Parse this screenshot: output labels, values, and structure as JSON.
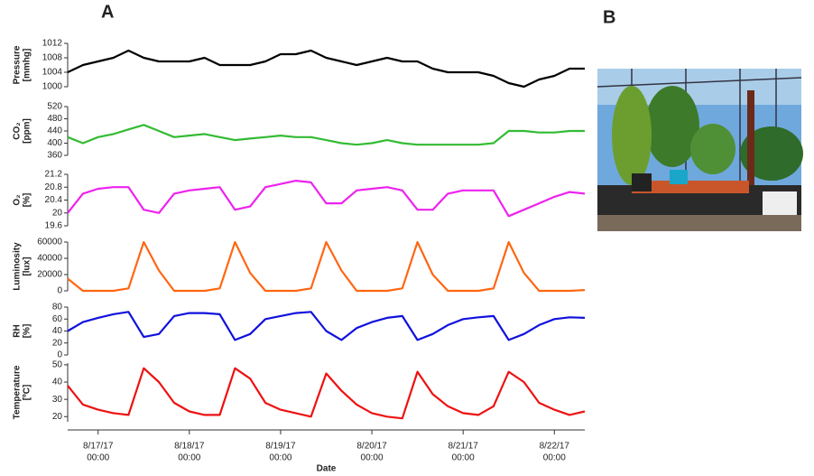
{
  "panels": {
    "a": "A",
    "b": "B"
  },
  "chart_data": {
    "type": "line",
    "x_label": "Date",
    "x": [
      "2017-08-16T16:00",
      "2017-08-16T20:00",
      "2017-08-17T00:00",
      "2017-08-17T04:00",
      "2017-08-17T08:00",
      "2017-08-17T12:00",
      "2017-08-17T16:00",
      "2017-08-17T20:00",
      "2017-08-18T00:00",
      "2017-08-18T04:00",
      "2017-08-18T08:00",
      "2017-08-18T12:00",
      "2017-08-18T16:00",
      "2017-08-18T20:00",
      "2017-08-19T00:00",
      "2017-08-19T04:00",
      "2017-08-19T08:00",
      "2017-08-19T12:00",
      "2017-08-19T16:00",
      "2017-08-19T20:00",
      "2017-08-20T00:00",
      "2017-08-20T04:00",
      "2017-08-20T08:00",
      "2017-08-20T12:00",
      "2017-08-20T16:00",
      "2017-08-20T20:00",
      "2017-08-21T00:00",
      "2017-08-21T04:00",
      "2017-08-21T08:00",
      "2017-08-21T12:00",
      "2017-08-21T16:00",
      "2017-08-21T20:00",
      "2017-08-22T00:00",
      "2017-08-22T04:00",
      "2017-08-22T08:00"
    ],
    "xlim": [
      "2017-08-16T16:00",
      "2017-08-22T08:00"
    ],
    "xticks": [
      {
        "value": "2017-08-17T00:00",
        "label": "8/17/17 00:00"
      },
      {
        "value": "2017-08-18T00:00",
        "label": "8/18/17 00:00"
      },
      {
        "value": "2017-08-19T00:00",
        "label": "8/19/17 00:00"
      },
      {
        "value": "2017-08-20T00:00",
        "label": "8/20/17 00:00"
      },
      {
        "value": "2017-08-21T00:00",
        "label": "8/21/17 00:00"
      },
      {
        "value": "2017-08-22T00:00",
        "label": "8/22/17 00:00"
      }
    ],
    "series": [
      {
        "name": "Pressure [mmhg]",
        "color": "#000000",
        "ylim": [
          1000,
          1012
        ],
        "yticks": [
          1000,
          1004,
          1008,
          1012
        ],
        "values": [
          1004,
          1006,
          1007,
          1008,
          1010,
          1008,
          1007,
          1007,
          1007,
          1008,
          1006,
          1006,
          1006,
          1007,
          1009,
          1009,
          1010,
          1008,
          1007,
          1006,
          1007,
          1008,
          1007,
          1007,
          1005,
          1004,
          1004,
          1004,
          1003,
          1001,
          1000,
          1002,
          1003,
          1005,
          1005
        ]
      },
      {
        "name": "CO₂ [ppm]",
        "color": "#33bb33",
        "ylim": [
          360,
          520
        ],
        "yticks": [
          360,
          400,
          440,
          480,
          520
        ],
        "values": [
          420,
          400,
          420,
          430,
          445,
          460,
          440,
          420,
          425,
          430,
          420,
          410,
          415,
          420,
          425,
          420,
          420,
          410,
          400,
          395,
          400,
          410,
          400,
          395,
          395,
          395,
          395,
          395,
          400,
          440,
          440,
          435,
          435,
          440,
          440
        ]
      },
      {
        "name": "O₂ [%]",
        "color": "#ee22ee",
        "ylim": [
          19.6,
          21.2
        ],
        "yticks": [
          19.6,
          20,
          20.4,
          20.8,
          21.2
        ],
        "values": [
          20.0,
          20.6,
          20.75,
          20.8,
          20.8,
          20.1,
          20.0,
          20.6,
          20.7,
          20.75,
          20.8,
          20.1,
          20.2,
          20.8,
          20.9,
          21.0,
          20.95,
          20.3,
          20.3,
          20.7,
          20.75,
          20.8,
          20.7,
          20.1,
          20.1,
          20.6,
          20.7,
          20.7,
          20.7,
          19.9,
          20.1,
          20.3,
          20.5,
          20.65,
          20.6
        ]
      },
      {
        "name": "Luminosity [lux]",
        "color": "#ff6611",
        "ylim": [
          0,
          60000
        ],
        "yticks": [
          0,
          20000,
          40000,
          60000
        ],
        "values": [
          15000,
          0,
          0,
          0,
          3000,
          60000,
          25000,
          0,
          0,
          0,
          3000,
          60000,
          22000,
          0,
          0,
          0,
          3000,
          60000,
          25000,
          0,
          0,
          0,
          3000,
          60000,
          20000,
          0,
          0,
          0,
          3000,
          60000,
          22000,
          0,
          0,
          0,
          1000
        ]
      },
      {
        "name": "RH [%]",
        "color": "#1111dd",
        "ylim": [
          0,
          80
        ],
        "yticks": [
          0,
          20,
          40,
          60,
          80
        ],
        "values": [
          40,
          55,
          62,
          68,
          72,
          30,
          35,
          65,
          70,
          70,
          68,
          25,
          35,
          60,
          65,
          70,
          72,
          40,
          25,
          45,
          55,
          62,
          65,
          25,
          35,
          50,
          60,
          63,
          65,
          25,
          35,
          50,
          60,
          63,
          62
        ]
      },
      {
        "name": "Temperature [ºC]",
        "color": "#ee1111",
        "ylim": [
          17,
          51
        ],
        "yticks": [
          20,
          30,
          40,
          50
        ],
        "values": [
          38,
          27,
          24,
          22,
          21,
          48,
          40,
          28,
          23,
          21,
          21,
          48,
          42,
          28,
          24,
          22,
          20,
          45,
          35,
          27,
          22,
          20,
          19,
          46,
          33,
          26,
          22,
          21,
          26,
          46,
          40,
          28,
          24,
          21,
          23
        ]
      }
    ]
  }
}
